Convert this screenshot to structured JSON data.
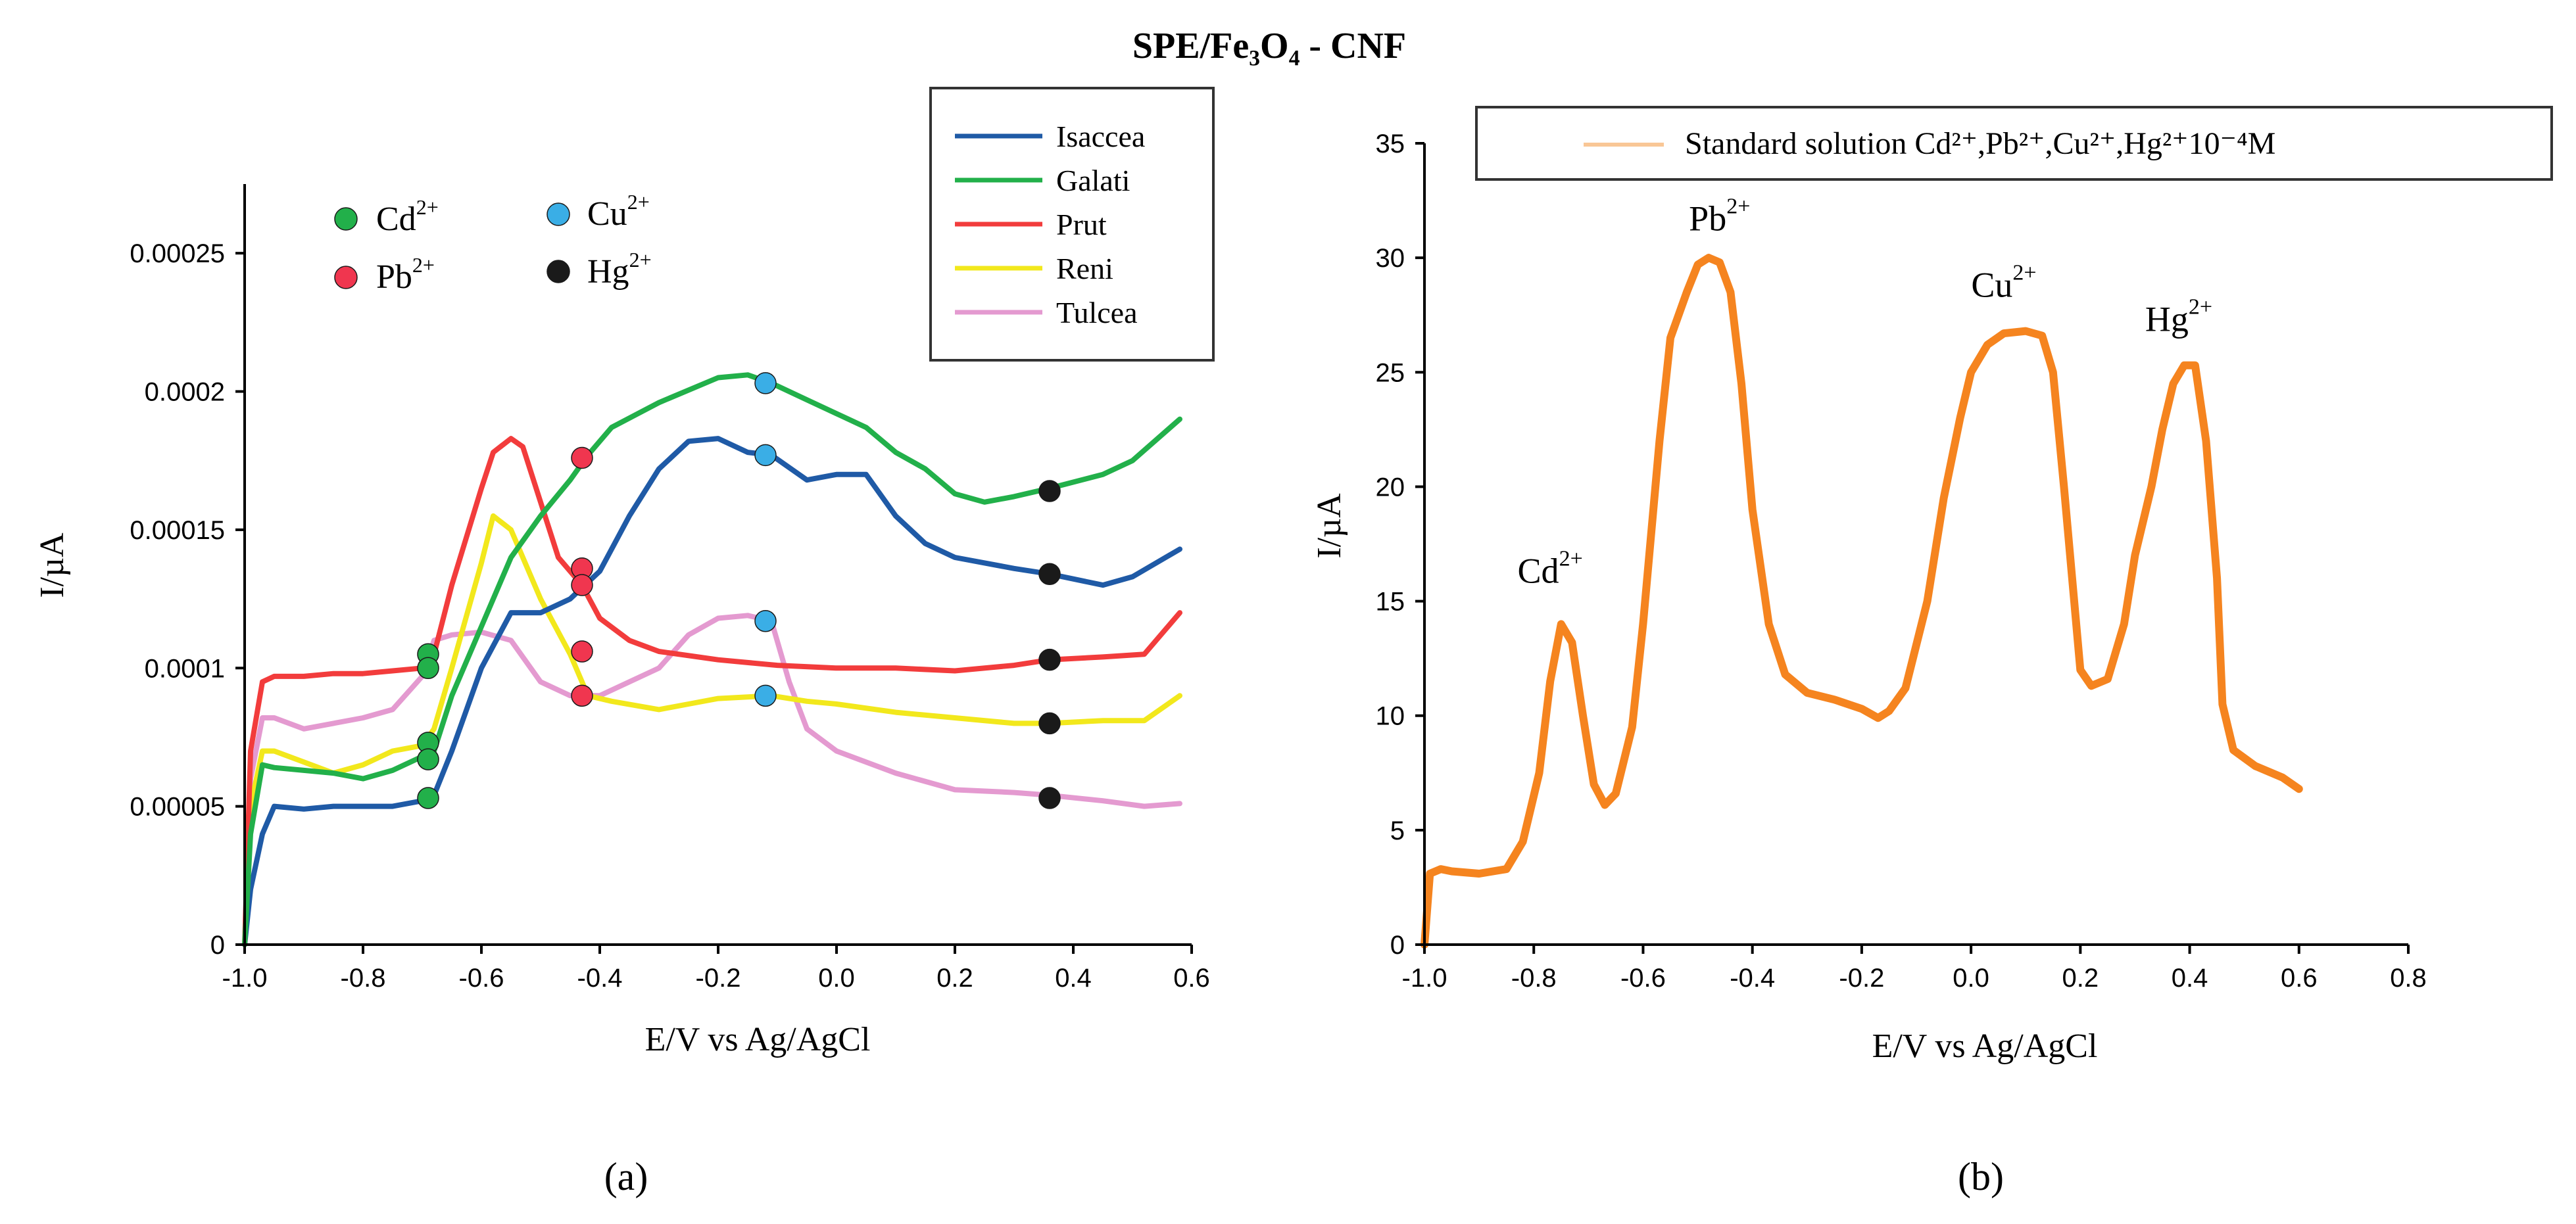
{
  "figure_title": "SPE/Fe₃O₄ - CNF",
  "colors": {
    "Isaccea": "#1f5aa6",
    "Galati": "#22b04a",
    "Prut": "#f23c3c",
    "Reni": "#f2e81c",
    "Tulcea": "#e49ad0",
    "standard": "#f5841f",
    "legend_standard": "#f9c796",
    "marker_Cd": "#22b04a",
    "marker_Pb": "#f0364f",
    "marker_Cu": "#3aaee6",
    "marker_Hg": "#1a1a1a"
  },
  "marker_legend": [
    {
      "ion": "Cd",
      "charge": "2+",
      "color_key": "marker_Cd"
    },
    {
      "ion": "Pb",
      "charge": "2+",
      "color_key": "marker_Pb"
    },
    {
      "ion": "Cu",
      "charge": "2+",
      "color_key": "marker_Cu"
    },
    {
      "ion": "Hg",
      "charge": "2+",
      "color_key": "marker_Hg"
    }
  ],
  "chart_data": [
    {
      "panel_label": "(a)",
      "type": "line",
      "xlabel": "E/V vs Ag/AgCl",
      "ylabel": "I/µA",
      "xlim": [
        -1.0,
        0.6
      ],
      "ylim": [
        0,
        0.000275
      ],
      "x_ticks": [
        -1.0,
        -0.8,
        -0.6,
        -0.4,
        -0.2,
        0.0,
        0.2,
        0.4,
        0.6
      ],
      "x_tick_labels": [
        "-1.0",
        "-0.8",
        "-0.6",
        "-0.4",
        "-0.2",
        "0.0",
        "0.2",
        "0.4",
        "0.6"
      ],
      "y_ticks": [
        0,
        5e-05,
        0.0001,
        0.00015,
        0.0002,
        0.00025
      ],
      "y_tick_labels": [
        "0",
        "0.00005",
        "0.0001",
        "0.00015",
        "0.0002",
        "0.00025"
      ],
      "legend": [
        "Isaccea",
        "Galati",
        "Prut",
        "Reni",
        "Tulcea"
      ],
      "series": [
        {
          "name": "Isaccea",
          "x": [
            -1.0,
            -0.99,
            -0.97,
            -0.95,
            -0.9,
            -0.85,
            -0.8,
            -0.75,
            -0.7,
            -0.68,
            -0.65,
            -0.6,
            -0.55,
            -0.5,
            -0.45,
            -0.4,
            -0.35,
            -0.3,
            -0.25,
            -0.2,
            -0.15,
            -0.11,
            -0.05,
            0.0,
            0.05,
            0.1,
            0.15,
            0.2,
            0.3,
            0.36,
            0.45,
            0.5,
            0.58
          ],
          "y": [
            0.0,
            2e-05,
            4e-05,
            5e-05,
            4.9e-05,
            5e-05,
            5e-05,
            5e-05,
            5.2e-05,
            5.4e-05,
            7e-05,
            0.0001,
            0.00012,
            0.00012,
            0.000125,
            0.000135,
            0.000155,
            0.000172,
            0.000182,
            0.000183,
            0.000178,
            0.000177,
            0.000168,
            0.00017,
            0.00017,
            0.000155,
            0.000145,
            0.00014,
            0.000136,
            0.000134,
            0.00013,
            0.000133,
            0.000143
          ]
        },
        {
          "name": "Galati",
          "x": [
            -1.0,
            -0.99,
            -0.97,
            -0.95,
            -0.9,
            -0.85,
            -0.8,
            -0.75,
            -0.7,
            -0.68,
            -0.65,
            -0.6,
            -0.55,
            -0.5,
            -0.45,
            -0.42,
            -0.38,
            -0.3,
            -0.2,
            -0.15,
            -0.11,
            -0.05,
            0.0,
            0.05,
            0.1,
            0.15,
            0.2,
            0.25,
            0.3,
            0.36,
            0.45,
            0.5,
            0.58
          ],
          "y": [
            0.0,
            4e-05,
            6.5e-05,
            6.4e-05,
            6.3e-05,
            6.2e-05,
            6e-05,
            6.3e-05,
            6.8e-05,
            7e-05,
            9e-05,
            0.000115,
            0.00014,
            0.000155,
            0.000168,
            0.000177,
            0.000187,
            0.000196,
            0.000205,
            0.000206,
            0.000203,
            0.000197,
            0.000192,
            0.000187,
            0.000178,
            0.000172,
            0.000163,
            0.00016,
            0.000162,
            0.000165,
            0.00017,
            0.000175,
            0.00019
          ]
        },
        {
          "name": "Prut",
          "x": [
            -1.0,
            -0.99,
            -0.97,
            -0.95,
            -0.9,
            -0.85,
            -0.8,
            -0.75,
            -0.7,
            -0.68,
            -0.65,
            -0.6,
            -0.58,
            -0.55,
            -0.53,
            -0.5,
            -0.47,
            -0.43,
            -0.4,
            -0.35,
            -0.3,
            -0.2,
            -0.1,
            0.0,
            0.1,
            0.2,
            0.3,
            0.36,
            0.45,
            0.52,
            0.58
          ],
          "y": [
            0.0,
            7e-05,
            9.5e-05,
            9.7e-05,
            9.7e-05,
            9.8e-05,
            9.8e-05,
            9.9e-05,
            0.0001,
            0.000105,
            0.00013,
            0.000165,
            0.000178,
            0.000183,
            0.00018,
            0.00016,
            0.00014,
            0.00013,
            0.000118,
            0.00011,
            0.000106,
            0.000103,
            0.000101,
            0.0001,
            0.0001,
            9.9e-05,
            0.000101,
            0.000103,
            0.000104,
            0.000105,
            0.00012
          ]
        },
        {
          "name": "Reni",
          "x": [
            -1.0,
            -0.99,
            -0.97,
            -0.95,
            -0.9,
            -0.85,
            -0.8,
            -0.75,
            -0.7,
            -0.68,
            -0.65,
            -0.6,
            -0.58,
            -0.55,
            -0.5,
            -0.45,
            -0.42,
            -0.38,
            -0.3,
            -0.25,
            -0.2,
            -0.11,
            -0.05,
            0.0,
            0.1,
            0.2,
            0.3,
            0.36,
            0.45,
            0.52,
            0.58
          ],
          "y": [
            0.0,
            5e-05,
            7e-05,
            7e-05,
            6.6e-05,
            6.2e-05,
            6.5e-05,
            7e-05,
            7.2e-05,
            7.8e-05,
            0.0001,
            0.000138,
            0.000155,
            0.00015,
            0.000125,
            0.000105,
            9e-05,
            8.8e-05,
            8.5e-05,
            8.7e-05,
            8.9e-05,
            9e-05,
            8.8e-05,
            8.7e-05,
            8.4e-05,
            8.2e-05,
            8e-05,
            8e-05,
            8.1e-05,
            8.1e-05,
            9e-05
          ]
        },
        {
          "name": "Tulcea",
          "x": [
            -1.0,
            -0.99,
            -0.97,
            -0.95,
            -0.9,
            -0.85,
            -0.8,
            -0.75,
            -0.7,
            -0.68,
            -0.65,
            -0.6,
            -0.55,
            -0.5,
            -0.45,
            -0.4,
            -0.35,
            -0.3,
            -0.25,
            -0.2,
            -0.15,
            -0.11,
            -0.08,
            -0.05,
            0.0,
            0.1,
            0.2,
            0.3,
            0.36,
            0.45,
            0.52,
            0.58
          ],
          "y": [
            0.0,
            6e-05,
            8.2e-05,
            8.2e-05,
            7.8e-05,
            8e-05,
            8.2e-05,
            8.5e-05,
            9.7e-05,
            0.00011,
            0.000112,
            0.000113,
            0.00011,
            9.5e-05,
            9e-05,
            9e-05,
            9.5e-05,
            0.0001,
            0.000112,
            0.000118,
            0.000119,
            0.000117,
            9.5e-05,
            7.8e-05,
            7e-05,
            6.2e-05,
            5.6e-05,
            5.5e-05,
            5.4e-05,
            5.2e-05,
            5e-05,
            5.1e-05
          ]
        }
      ],
      "markers": [
        {
          "ion": "Cd",
          "x": -0.69,
          "y": 0.000105
        },
        {
          "ion": "Cd",
          "x": -0.69,
          "y": 0.0001
        },
        {
          "ion": "Cd",
          "x": -0.69,
          "y": 7.3e-05
        },
        {
          "ion": "Cd",
          "x": -0.69,
          "y": 6.7e-05
        },
        {
          "ion": "Cd",
          "x": -0.69,
          "y": 5.3e-05
        },
        {
          "ion": "Pb",
          "x": -0.43,
          "y": 0.000176
        },
        {
          "ion": "Pb",
          "x": -0.43,
          "y": 0.000136
        },
        {
          "ion": "Pb",
          "x": -0.43,
          "y": 0.00013
        },
        {
          "ion": "Pb",
          "x": -0.43,
          "y": 0.000106
        },
        {
          "ion": "Pb",
          "x": -0.43,
          "y": 9e-05
        },
        {
          "ion": "Cu",
          "x": -0.12,
          "y": 0.000203
        },
        {
          "ion": "Cu",
          "x": -0.12,
          "y": 0.000177
        },
        {
          "ion": "Cu",
          "x": -0.12,
          "y": 0.000117
        },
        {
          "ion": "Cu",
          "x": -0.12,
          "y": 9e-05
        },
        {
          "ion": "Hg",
          "x": 0.36,
          "y": 0.000164
        },
        {
          "ion": "Hg",
          "x": 0.36,
          "y": 0.000134
        },
        {
          "ion": "Hg",
          "x": 0.36,
          "y": 0.000103
        },
        {
          "ion": "Hg",
          "x": 0.36,
          "y": 8e-05
        },
        {
          "ion": "Hg",
          "x": 0.36,
          "y": 5.3e-05
        }
      ]
    },
    {
      "panel_label": "(b)",
      "type": "line",
      "xlabel": "E/V vs Ag/AgCl",
      "ylabel": "I/µA",
      "xlim": [
        -1.0,
        0.8
      ],
      "ylim": [
        0,
        35
      ],
      "x_ticks": [
        -1.0,
        -0.8,
        -0.6,
        -0.4,
        -0.2,
        0.0,
        0.2,
        0.4,
        0.6,
        0.8
      ],
      "x_tick_labels": [
        "-1.0",
        "-0.8",
        "-0.6",
        "-0.4",
        "-0.2",
        "0.0",
        "0.2",
        "0.4",
        "0.6",
        "0.8"
      ],
      "y_ticks": [
        0,
        5,
        10,
        15,
        20,
        25,
        30,
        35
      ],
      "y_tick_labels": [
        "0",
        "5",
        "10",
        "15",
        "20",
        "25",
        "30",
        "35"
      ],
      "legend_text": "Standard solution Cd²⁺,Pb²⁺,Cu²⁺,Hg²⁺10⁻⁴M",
      "series": [
        {
          "name": "Standard solution",
          "x": [
            -1.0,
            -0.99,
            -0.97,
            -0.95,
            -0.9,
            -0.85,
            -0.82,
            -0.79,
            -0.77,
            -0.75,
            -0.73,
            -0.71,
            -0.69,
            -0.67,
            -0.65,
            -0.62,
            -0.6,
            -0.57,
            -0.55,
            -0.52,
            -0.5,
            -0.48,
            -0.46,
            -0.44,
            -0.42,
            -0.4,
            -0.37,
            -0.34,
            -0.3,
            -0.25,
            -0.2,
            -0.17,
            -0.15,
            -0.12,
            -0.08,
            -0.05,
            -0.02,
            0.0,
            0.03,
            0.06,
            0.1,
            0.13,
            0.15,
            0.17,
            0.2,
            0.22,
            0.25,
            0.28,
            0.3,
            0.33,
            0.35,
            0.37,
            0.39,
            0.41,
            0.43,
            0.45,
            0.46,
            0.48,
            0.52,
            0.57,
            0.6
          ],
          "y": [
            0.0,
            3.1,
            3.3,
            3.2,
            3.1,
            3.3,
            4.5,
            7.5,
            11.5,
            14.0,
            13.2,
            10.0,
            7.0,
            6.1,
            6.6,
            9.5,
            14.0,
            22.0,
            26.5,
            28.5,
            29.7,
            30.0,
            29.8,
            28.5,
            24.5,
            19.0,
            14.0,
            11.8,
            11.0,
            10.7,
            10.3,
            9.9,
            10.2,
            11.2,
            15.0,
            19.5,
            23.0,
            25.0,
            26.2,
            26.7,
            26.8,
            26.6,
            25.0,
            20.0,
            12.0,
            11.3,
            11.6,
            14.0,
            17.0,
            20.0,
            22.5,
            24.5,
            25.3,
            25.3,
            22.0,
            16.0,
            10.5,
            8.5,
            7.8,
            7.3,
            6.8
          ]
        }
      ],
      "peak_labels": [
        {
          "ion": "Cd",
          "charge": "2+",
          "x": -0.77,
          "y": 15.8
        },
        {
          "ion": "Pb",
          "charge": "2+",
          "x": -0.46,
          "y": 31.2
        },
        {
          "ion": "Cu",
          "charge": "2+",
          "x": 0.06,
          "y": 28.3
        },
        {
          "ion": "Hg",
          "charge": "2+",
          "x": 0.38,
          "y": 26.8
        }
      ]
    }
  ]
}
